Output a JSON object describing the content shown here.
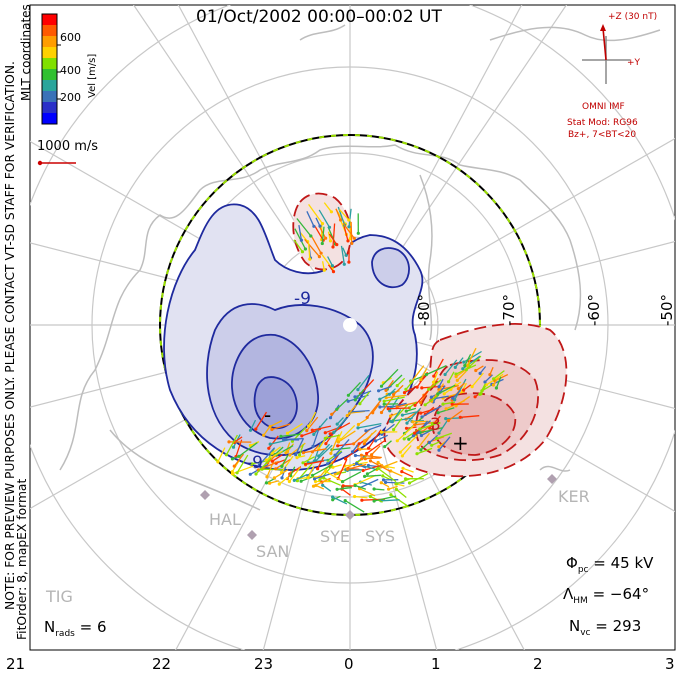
{
  "title": "01/Oct/2002  00:00–00:02  UT",
  "colorbar": {
    "label": "Vel [m/s]",
    "ticks": [
      "600",
      "400",
      "200"
    ],
    "colors": [
      "#ff0000",
      "#ff5a00",
      "#ff9d00",
      "#ffd100",
      "#80e000",
      "#30c030",
      "#2aa59b",
      "#3a72b8",
      "#2a30c8",
      "#0000ff"
    ]
  },
  "coords_label": "MLT coordinates",
  "reference_vector": {
    "label": "1000 m/s",
    "color": "#cc0000"
  },
  "imf": {
    "z_label": "+Z (30 nT)",
    "y_label": "+Y",
    "source": "OMNI IMF",
    "model_line1": "Stat Mod: RG96",
    "model_line2": "Bz+, 7<BT<20"
  },
  "notes": {
    "preview": "NOTE: FOR PREVIEW PURPOSES ONLY. PLEASE CONTACT VT-SD STAFF FOR VERIFICATION.",
    "fit": "FitOrder: 8, mapEX format"
  },
  "latitude_labels": [
    "-80°",
    "-70°",
    "-60°",
    "-50°"
  ],
  "mlt_labels": [
    "21",
    "22",
    "23",
    "0",
    "1",
    "2",
    "3"
  ],
  "radars": [
    "HAL",
    "SAN",
    "SYE",
    "SYS",
    "KER",
    "TIG"
  ],
  "contour_labels": [
    "-9",
    "-9",
    "-",
    "+",
    "3"
  ],
  "stats": {
    "nrads_label": "N",
    "nrads_sub": "rads",
    "nrads_value": "= 6",
    "phi_label": "Φ",
    "phi_sub": "pc",
    "phi_value": "= 45 kV",
    "lambda_label": "Λ",
    "lambda_sub": "HM",
    "lambda_value": "= −64°",
    "nvc_label": "N",
    "nvc_sub": "vc",
    "nvc_value": "= 293"
  }
}
